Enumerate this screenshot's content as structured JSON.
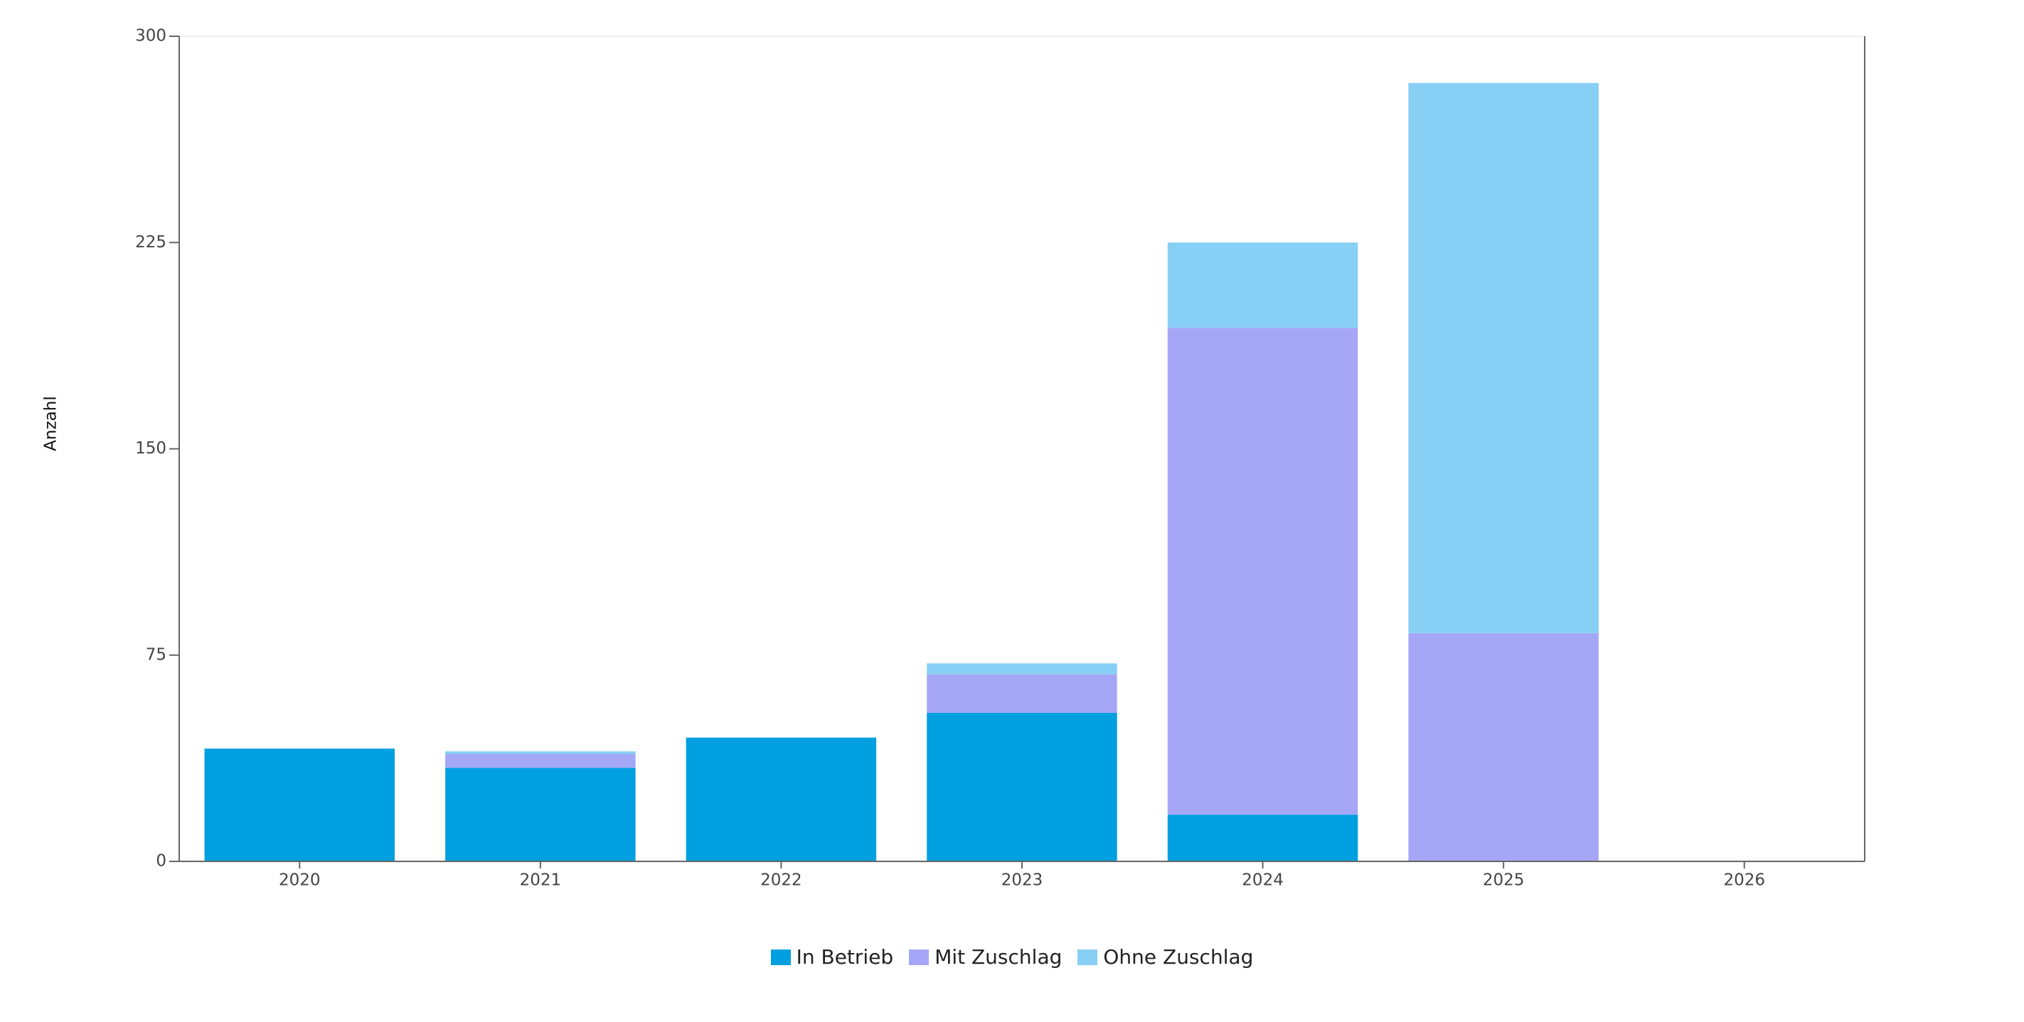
{
  "chart_data": {
    "type": "stacked-bar",
    "y_label": "Anzahl",
    "categories": [
      "2020",
      "2021",
      "2022",
      "2023",
      "2024",
      "2025",
      "2026"
    ],
    "series": [
      {
        "name": "In Betrieb",
        "color": "#009fe0",
        "values": [
          41,
          34,
          45,
          54,
          17,
          0,
          0
        ]
      },
      {
        "name": "Mit Zuschlag",
        "color": "#a5a7f6",
        "values": [
          0,
          5,
          0,
          14,
          177,
          83,
          0
        ]
      },
      {
        "name": "Ohne Zuschlag",
        "color": "#87cff5",
        "values": [
          0,
          1,
          0,
          4,
          31,
          200,
          0
        ]
      }
    ],
    "ylim": [
      0,
      300
    ],
    "yticks": [
      0,
      75,
      150,
      225,
      300
    ]
  }
}
